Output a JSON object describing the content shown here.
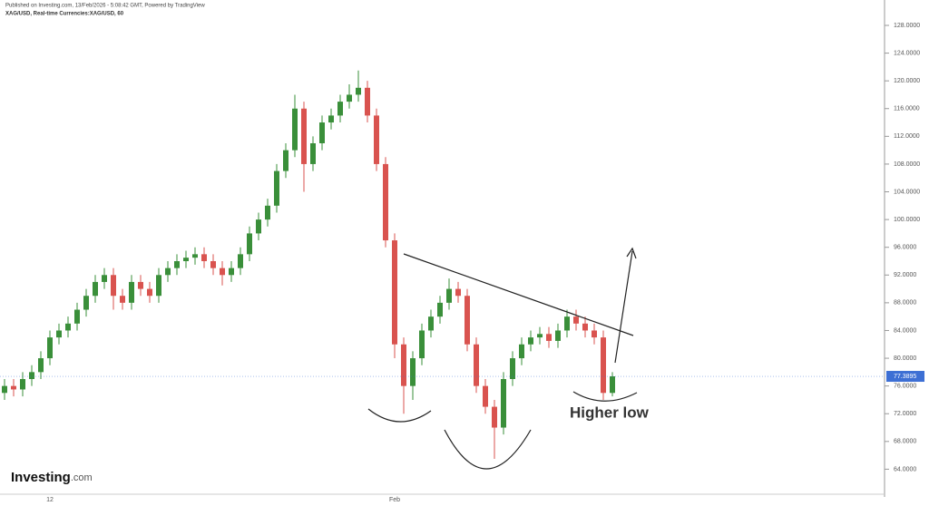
{
  "chart_data": {
    "type": "candlestick",
    "subtitle": "Published on Investing.com, 13/Feb/2026 - 5:08:42 GMT, Powered by TradingView",
    "title": "XAG/USD, Real-time Currencies:XAG/USD, 60",
    "annotations": [
      "Higher low"
    ],
    "logo": "Investing",
    "logo_suffix": ".com",
    "categories": [
      null,
      null,
      null,
      null,
      null,
      "12",
      null,
      null,
      null,
      null,
      null,
      null,
      null,
      null,
      null,
      null,
      null,
      null,
      null,
      null,
      null,
      null,
      null,
      null,
      null,
      null,
      null,
      null,
      null,
      null,
      null,
      null,
      null,
      null,
      null,
      null,
      null,
      null,
      null,
      null,
      null,
      null,
      null,
      "Feb",
      null,
      null,
      null,
      null,
      null,
      null,
      null,
      null,
      null,
      null,
      null,
      null,
      null,
      null,
      null,
      null,
      null,
      null,
      null,
      null,
      null,
      null,
      null,
      null
    ],
    "open": [
      75,
      76,
      75.5,
      77,
      78,
      80,
      83,
      84,
      85,
      87,
      89,
      91,
      92,
      89,
      88,
      91,
      90,
      89,
      92,
      93,
      94,
      94.5,
      95,
      94,
      93,
      92,
      93,
      95,
      98,
      100,
      102,
      107,
      110,
      116,
      108,
      111,
      114,
      115,
      117,
      118,
      119,
      115,
      108,
      97,
      82,
      76,
      80,
      84,
      86,
      88,
      90,
      89,
      82,
      76,
      73,
      70,
      77,
      80,
      82,
      83,
      83.5,
      82.5,
      84,
      86,
      85,
      84,
      83,
      75
    ],
    "high": [
      77,
      77,
      78,
      79,
      81,
      84,
      85,
      86,
      88,
      90,
      92,
      93,
      93,
      90,
      92,
      92,
      91,
      93,
      94,
      95,
      95.5,
      96,
      96,
      95,
      94,
      94,
      96,
      99,
      101,
      103,
      108,
      111,
      118,
      117,
      112,
      115,
      116,
      118,
      119.5,
      121.5,
      120,
      116,
      109,
      98,
      83,
      81,
      85,
      87,
      89,
      91.5,
      91,
      90,
      83,
      77,
      74,
      78,
      81,
      83,
      84,
      84.5,
      84.5,
      85,
      87,
      87,
      86,
      85,
      84,
      78
    ],
    "low": [
      74,
      74.5,
      74.5,
      76,
      77,
      79,
      82,
      83,
      84,
      86,
      88,
      90,
      87,
      87,
      87,
      89,
      88,
      88,
      91,
      92,
      93,
      93.5,
      93,
      92,
      90.5,
      91,
      92,
      94,
      97,
      99,
      101,
      106,
      109,
      104,
      107,
      110,
      113,
      114,
      116,
      117,
      114,
      107,
      96,
      80,
      72,
      74,
      79,
      83,
      85,
      87,
      88,
      81,
      75,
      72,
      65.5,
      69,
      76,
      79,
      81,
      82,
      81.5,
      81.5,
      83,
      84,
      83,
      82,
      74,
      74.5
    ],
    "close": [
      76,
      75.5,
      77,
      78,
      80,
      83,
      84,
      85,
      87,
      89,
      91,
      92,
      89,
      88,
      91,
      90,
      89,
      92,
      93,
      94,
      94.5,
      95,
      94,
      93,
      92,
      93,
      95,
      98,
      100,
      102,
      107,
      110,
      116,
      108,
      111,
      114,
      115,
      117,
      118,
      119,
      115,
      108,
      97,
      82,
      76,
      80,
      84,
      86,
      88,
      90,
      89,
      82,
      76,
      73,
      70,
      77,
      80,
      82,
      83,
      83.5,
      82.5,
      84,
      86,
      85,
      84,
      83,
      75,
      77.3895
    ],
    "up_color": "#3a8f3a",
    "down_color": "#d9534f",
    "last_price": 77.3895,
    "last_price_color": "#3d6fd4",
    "ylim": [
      60,
      131.66
    ],
    "yticks": [
      {
        "value": 64,
        "label": "64.0000"
      },
      {
        "value": 68,
        "label": "68.0000"
      },
      {
        "value": 72,
        "label": "72.0000"
      },
      {
        "value": 76,
        "label": "76.0000"
      },
      {
        "value": 80,
        "label": "80.0000"
      },
      {
        "value": 84,
        "label": "84.0000"
      },
      {
        "value": 88,
        "label": "88.0000"
      },
      {
        "value": 92,
        "label": "92.0000"
      },
      {
        "value": 96,
        "label": "96.0000"
      },
      {
        "value": 100,
        "label": "100.0000"
      },
      {
        "value": 104,
        "label": "104.0000"
      },
      {
        "value": 108,
        "label": "108.0000"
      },
      {
        "value": 112,
        "label": "112.0000"
      },
      {
        "value": 116,
        "label": "116.0000"
      },
      {
        "value": 120,
        "label": "120.0000"
      },
      {
        "value": 124,
        "label": "124.0000"
      },
      {
        "value": 128,
        "label": "128.0000"
      }
    ],
    "grid": false
  }
}
